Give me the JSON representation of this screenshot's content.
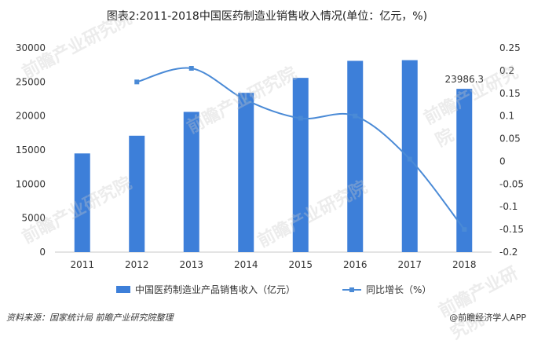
{
  "title": "图表2:2011-2018中国医药制造业销售收入情况(单位：亿元，%)",
  "footer": {
    "source": "资料来源：国家统计局 前瞻产业研究院整理",
    "brand": "@前瞻经济学人APP"
  },
  "legend": {
    "bar_label": "中国医药制造业产品销售收入（亿元）",
    "line_label": "同比增长（%）"
  },
  "watermark": "前瞻产业研究院",
  "chart_data": {
    "type": "bar",
    "categories": [
      "2011",
      "2012",
      "2013",
      "2014",
      "2015",
      "2016",
      "2017",
      "2018"
    ],
    "series": [
      {
        "name": "中国医药制造业产品销售收入（亿元）",
        "type": "bar",
        "axis": "left",
        "values": [
          14500,
          17100,
          20600,
          23400,
          25600,
          28100,
          28200,
          23986.3
        ],
        "color": "#3d7fd9"
      },
      {
        "name": "同比增长（%）",
        "type": "line",
        "axis": "right",
        "values": [
          null,
          0.175,
          0.205,
          0.135,
          0.095,
          0.1,
          0.005,
          -0.15
        ],
        "color": "#4a8ad6"
      }
    ],
    "data_labels": [
      {
        "category": "2018",
        "text": "23986.3"
      }
    ],
    "y_left": {
      "min": 0,
      "max": 30000,
      "ticks": [
        "0",
        "5000",
        "10000",
        "15000",
        "20000",
        "25000",
        "30000"
      ]
    },
    "y_right": {
      "min": -0.2,
      "max": 0.25,
      "ticks": [
        "-0.2",
        "-0.15",
        "-0.1",
        "-0.05",
        "0",
        "0.05",
        "0.1",
        "0.15",
        "0.2",
        "0.25"
      ]
    },
    "grid": false,
    "legend_position": "bottom"
  }
}
